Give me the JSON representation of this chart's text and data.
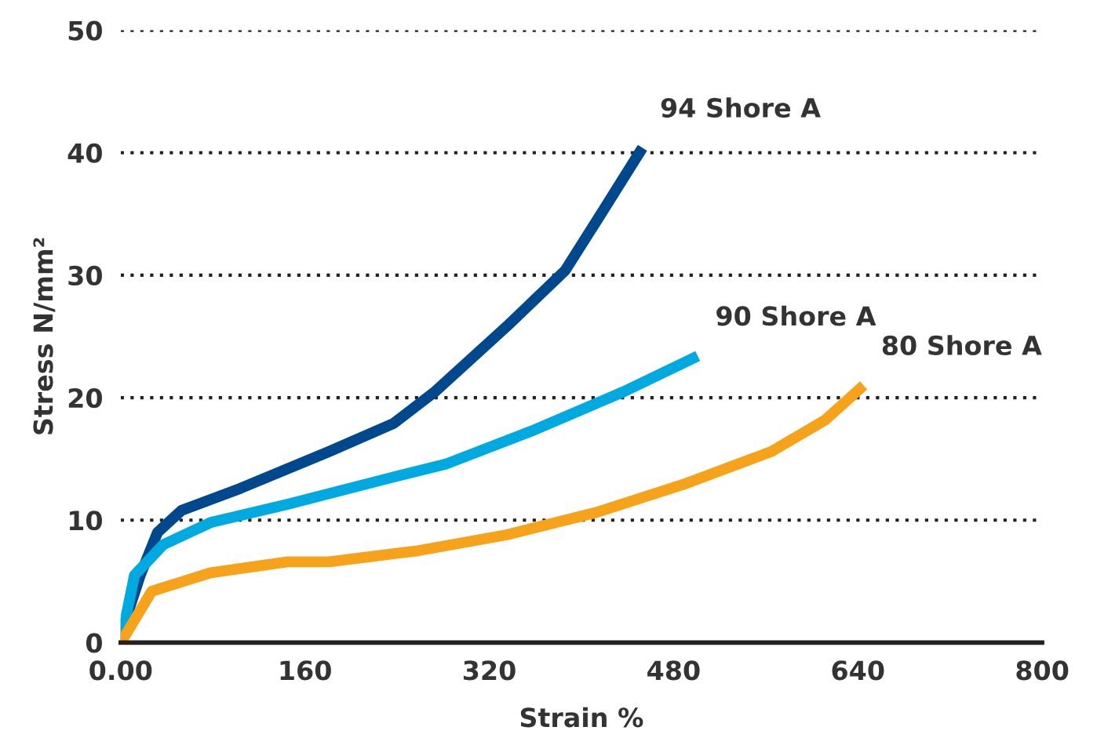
{
  "chart_data": {
    "type": "line",
    "xlabel": "Strain %",
    "ylabel": "Stress N/mm²",
    "xlim": [
      0,
      800
    ],
    "xticks": [
      {
        "value": 0,
        "label": "0.00"
      },
      160,
      320,
      480,
      640,
      800
    ],
    "ylim": [
      0,
      50
    ],
    "yticks": [
      0,
      10,
      20,
      30,
      40,
      50
    ],
    "grid": "y",
    "line_style": "solid",
    "marker": "none",
    "legend": false,
    "series": [
      {
        "name": "94 Shore A",
        "color": "#00488d",
        "x": [
          0,
          1,
          17,
          32,
          53,
          104,
          181,
          237,
          273,
          335,
          386,
          417,
          453
        ],
        "values": [
          0,
          0.9,
          5.5,
          9.0,
          10.8,
          12.6,
          15.6,
          17.9,
          20.5,
          25.8,
          30.4,
          35,
          40.4
        ]
      },
      {
        "name": "90 Shore A",
        "color": "#00a9e0",
        "x": [
          0,
          12,
          37,
          78,
          145,
          232,
          283,
          360,
          437,
          501
        ],
        "values": [
          0,
          5.5,
          8.0,
          9.8,
          11.3,
          13.4,
          14.6,
          17.4,
          20.5,
          23.4
        ]
      },
      {
        "name": "80 Shore A",
        "color": "#f7a21b",
        "x": [
          0,
          6,
          27,
          78,
          145,
          181,
          258,
          335,
          412,
          488,
          565,
          612,
          645
        ],
        "values": [
          0,
          0.9,
          4.2,
          5.7,
          6.6,
          6.6,
          7.5,
          8.8,
          10.6,
          12.9,
          15.6,
          18.2,
          21
        ]
      }
    ]
  }
}
